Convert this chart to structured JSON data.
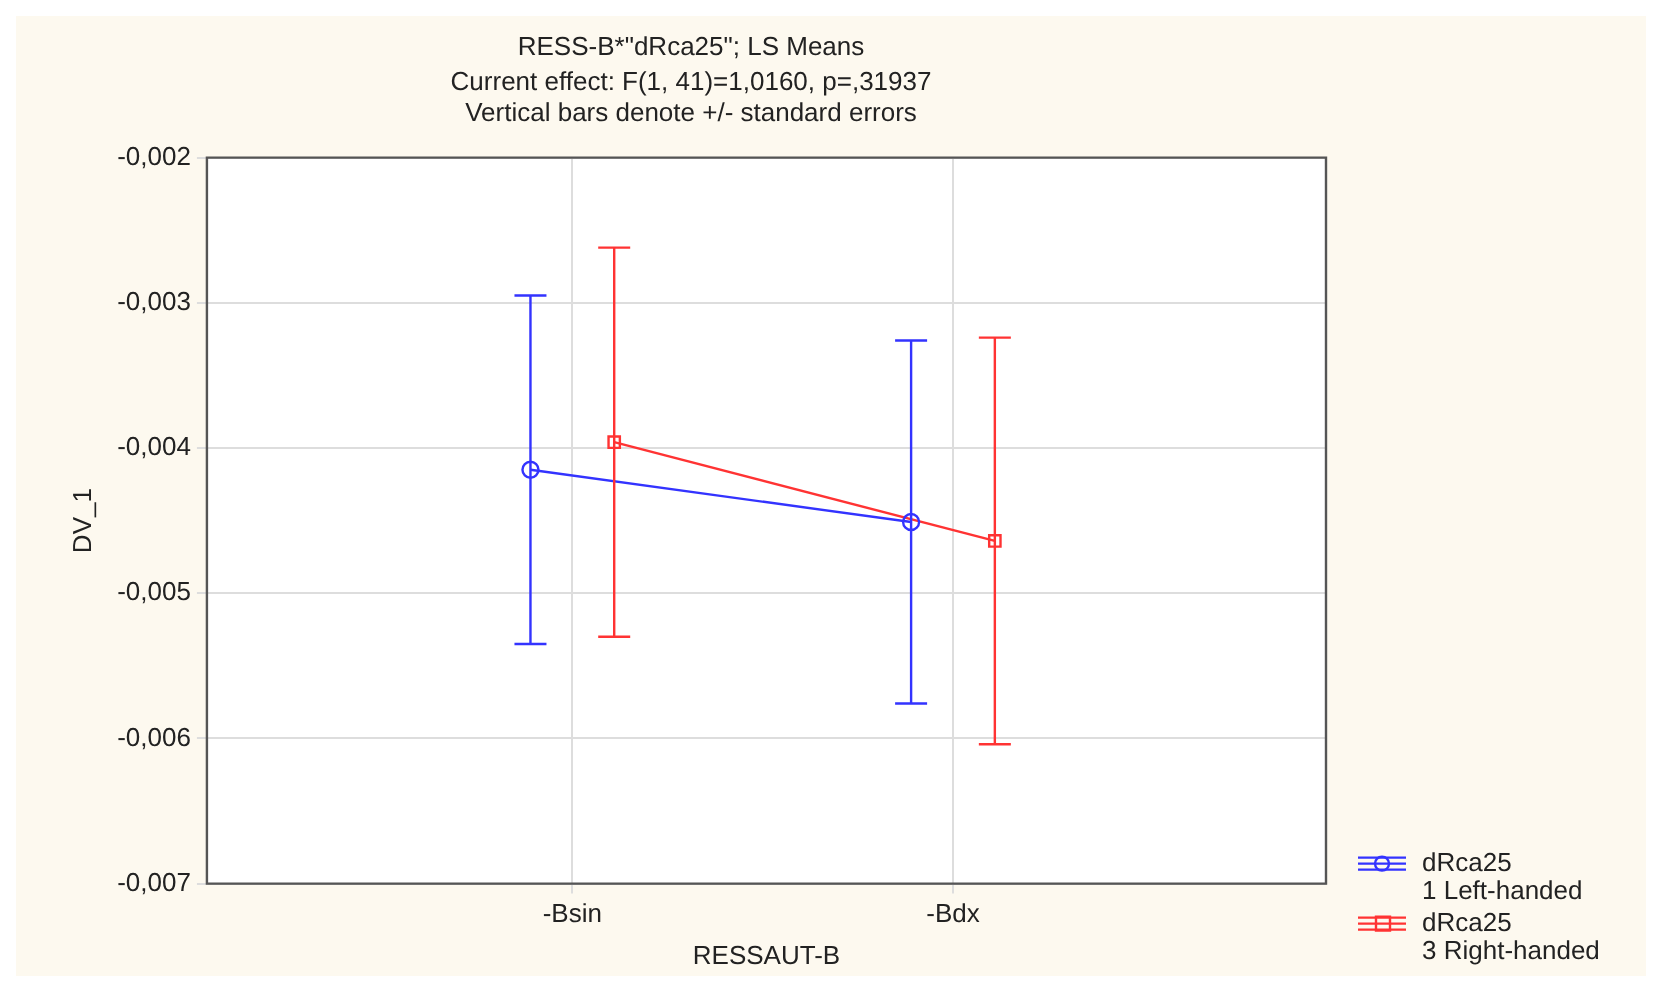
{
  "chart_data": {
    "type": "line",
    "title": "RESS-B*\"dRca25\"; LS Means",
    "subtitle": "Current effect: F(1, 41)=1,0160, p=,31937",
    "annotations": [
      "Vertical bars denote +/- standard errors"
    ],
    "xlabel": "RESSAUT-B",
    "ylabel": "DV_1",
    "categories": [
      "-Bsin",
      "-Bdx"
    ],
    "series": [
      {
        "name": "dRca25 1 Left-handed",
        "color": "#3333ff",
        "marker": "circle",
        "values": [
          -0.00415,
          -0.00451
        ],
        "errors": [
          0.0012,
          0.00125
        ]
      },
      {
        "name": "dRca25 3 Right-handed",
        "color": "#ff3333",
        "marker": "square",
        "values": [
          -0.00396,
          -0.00464
        ],
        "errors": [
          0.00134,
          0.0014
        ]
      }
    ],
    "ylim": [
      -0.007,
      -0.002
    ],
    "yticks": [
      {
        "value": -0.007,
        "label": "-0,007"
      },
      {
        "value": -0.006,
        "label": "-0,006"
      },
      {
        "value": -0.005,
        "label": "-0,005"
      },
      {
        "value": -0.004,
        "label": "-0,004"
      },
      {
        "value": -0.003,
        "label": "-0,003"
      },
      {
        "value": -0.002,
        "label": "-0,002"
      }
    ],
    "grid": true,
    "legend": "bottom right",
    "line_style": "solid"
  }
}
